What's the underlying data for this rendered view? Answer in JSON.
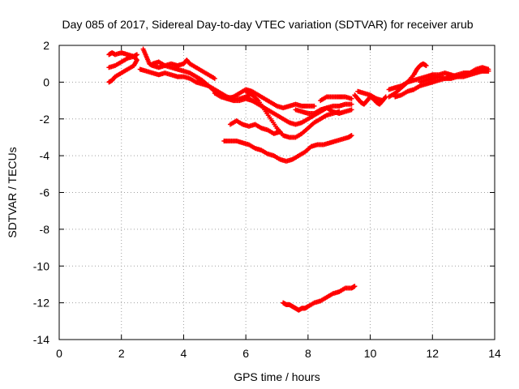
{
  "chart_data": {
    "type": "scatter",
    "title": "Day 085 of 2017, Sidereal Day-to-day VTEC variation (SDTVAR) for receiver arub",
    "xlabel": "GPS time / hours",
    "ylabel": "SDTVAR / TECUs",
    "xlim": [
      0,
      14
    ],
    "ylim": [
      -14,
      2
    ],
    "xticks": [
      "0",
      "2",
      "4",
      "6",
      "8",
      "10",
      "12",
      "14"
    ],
    "yticks": [
      "2",
      "0",
      "-2",
      "-4",
      "-6",
      "-8",
      "-10",
      "-12",
      "-14"
    ],
    "grid": true,
    "marker": "plus",
    "color": "#ff0000",
    "series": [
      {
        "x": [
          1.6,
          1.7,
          1.8,
          2.0,
          2.2,
          2.4,
          2.5,
          2.4,
          2.2,
          2.0,
          1.8,
          1.7,
          1.6
        ],
        "y": [
          1.5,
          1.6,
          1.5,
          1.6,
          1.5,
          1.4,
          1.2,
          0.9,
          0.7,
          0.5,
          0.3,
          0.1,
          0.0
        ]
      },
      {
        "x": [
          1.6,
          1.8,
          2.0,
          2.2,
          2.4,
          2.5
        ],
        "y": [
          0.8,
          0.9,
          1.1,
          1.3,
          1.4,
          1.5
        ]
      },
      {
        "x": [
          2.7,
          2.8,
          2.9,
          3.0,
          3.2,
          3.4,
          3.6,
          3.8,
          4.0,
          4.2,
          4.4,
          4.6,
          4.8,
          5.0,
          5.2,
          5.4,
          5.6,
          5.8,
          6.0,
          6.2
        ],
        "y": [
          1.8,
          1.4,
          1.0,
          0.9,
          0.8,
          0.9,
          0.8,
          0.7,
          0.6,
          0.5,
          0.3,
          0.1,
          -0.2,
          -0.5,
          -0.7,
          -0.9,
          -1.0,
          -1.0,
          -0.9,
          -1.0
        ]
      },
      {
        "x": [
          2.6,
          2.8,
          3.0,
          3.2,
          3.4,
          3.6,
          3.8,
          4.0,
          4.2,
          4.4,
          4.6,
          4.8
        ],
        "y": [
          0.7,
          0.6,
          0.5,
          0.4,
          0.5,
          0.4,
          0.3,
          0.3,
          0.2,
          0.0,
          -0.1,
          -0.2
        ]
      },
      {
        "x": [
          3.0,
          3.2,
          3.4,
          3.6,
          3.8,
          4.0,
          4.1,
          4.2,
          4.4,
          4.6,
          4.8,
          5.0
        ],
        "y": [
          1.0,
          1.1,
          0.9,
          1.0,
          0.9,
          1.0,
          1.2,
          1.0,
          0.8,
          0.6,
          0.4,
          0.2
        ]
      },
      {
        "x": [
          4.4,
          4.6,
          4.8,
          5.0,
          5.2,
          5.4,
          5.6,
          5.8,
          6.0,
          6.2
        ],
        "y": [
          0.3,
          0.0,
          -0.2,
          -0.4,
          -0.6,
          -0.8,
          -0.9,
          -0.9,
          -0.8,
          -0.6
        ]
      },
      {
        "x": [
          5.0,
          5.2,
          5.4,
          5.6,
          5.8,
          6.0,
          6.2,
          6.4,
          6.6,
          6.8,
          7.0,
          7.2,
          7.4,
          7.6,
          7.8,
          8.0,
          8.2
        ],
        "y": [
          -0.6,
          -0.8,
          -0.9,
          -0.8,
          -0.6,
          -0.4,
          -0.5,
          -0.7,
          -0.9,
          -1.1,
          -1.3,
          -1.4,
          -1.3,
          -1.2,
          -1.3,
          -1.3,
          -1.3
        ]
      },
      {
        "x": [
          6.0,
          6.2,
          6.4,
          6.6,
          6.8,
          7.0,
          7.2,
          7.4,
          7.6,
          7.8,
          8.0,
          8.2,
          8.4,
          8.6,
          8.8,
          9.0,
          9.2,
          9.4
        ],
        "y": [
          -0.8,
          -1.0,
          -1.2,
          -1.4,
          -1.6,
          -1.8,
          -2.0,
          -2.2,
          -2.3,
          -2.2,
          -2.0,
          -1.8,
          -1.6,
          -1.4,
          -1.3,
          -1.3,
          -1.2,
          -1.2
        ]
      },
      {
        "x": [
          6.0,
          6.2,
          6.4,
          6.6,
          6.8,
          7.0,
          7.2,
          7.4,
          7.6,
          7.8,
          8.0,
          8.2,
          8.4,
          8.6,
          8.8,
          9.0
        ],
        "y": [
          -0.5,
          -0.7,
          -1.0,
          -1.5,
          -2.0,
          -2.5,
          -2.9,
          -3.0,
          -3.0,
          -2.8,
          -2.5,
          -2.2,
          -2.0,
          -1.8,
          -1.7,
          -1.6
        ]
      },
      {
        "x": [
          7.6,
          7.8,
          8.0,
          8.2,
          8.4,
          8.6,
          8.8,
          9.0,
          9.2,
          9.4
        ],
        "y": [
          -1.5,
          -1.6,
          -1.7,
          -1.7,
          -1.5,
          -1.4,
          -1.6,
          -1.7,
          -1.6,
          -1.5
        ]
      },
      {
        "x": [
          8.4,
          8.6,
          8.8,
          9.0,
          9.2,
          9.4
        ],
        "y": [
          -1.0,
          -0.8,
          -0.8,
          -0.8,
          -0.8,
          -0.9
        ]
      },
      {
        "x": [
          5.5,
          5.7,
          5.9,
          6.1,
          6.3,
          6.5,
          6.7,
          6.9,
          7.1
        ],
        "y": [
          -2.3,
          -2.1,
          -2.3,
          -2.4,
          -2.3,
          -2.5,
          -2.6,
          -2.8,
          -2.7
        ]
      },
      {
        "x": [
          5.3,
          5.5,
          5.7,
          5.9,
          6.1,
          6.3,
          6.5,
          6.7,
          6.9,
          7.1,
          7.3,
          7.5,
          7.7,
          7.9,
          8.1,
          8.3,
          8.5,
          8.7,
          8.9,
          9.1,
          9.3,
          9.4
        ],
        "y": [
          -3.2,
          -3.2,
          -3.2,
          -3.3,
          -3.4,
          -3.6,
          -3.7,
          -3.9,
          -4.0,
          -4.2,
          -4.3,
          -4.2,
          -4.0,
          -3.8,
          -3.5,
          -3.4,
          -3.4,
          -3.3,
          -3.2,
          -3.1,
          -3.0,
          -2.9
        ]
      },
      {
        "x": [
          9.5,
          9.6,
          9.7,
          9.8,
          9.9,
          10.0,
          10.1,
          10.2,
          10.3,
          10.4,
          10.5
        ],
        "y": [
          -0.7,
          -0.9,
          -1.1,
          -1.2,
          -1.0,
          -0.8,
          -0.9,
          -1.1,
          -1.2,
          -1.0,
          -0.8
        ]
      },
      {
        "x": [
          9.6,
          9.8,
          10.0,
          10.2,
          10.4
        ],
        "y": [
          -0.5,
          -0.6,
          -0.7,
          -0.9,
          -1.0
        ]
      },
      {
        "x": [
          10.6,
          10.8,
          11.0,
          11.2,
          11.4,
          11.5,
          11.6,
          11.7,
          11.8
        ],
        "y": [
          -0.8,
          -0.6,
          -0.3,
          0.0,
          0.4,
          0.7,
          0.9,
          1.0,
          0.9
        ]
      },
      {
        "x": [
          10.6,
          10.8,
          11.0,
          11.2,
          11.4,
          11.6,
          11.8,
          12.0,
          12.2,
          12.4,
          12.6,
          12.8,
          13.0,
          13.2,
          13.4,
          13.6,
          13.8
        ],
        "y": [
          -0.4,
          -0.3,
          -0.2,
          0.0,
          0.1,
          0.2,
          0.3,
          0.4,
          0.4,
          0.5,
          0.4,
          0.3,
          0.4,
          0.5,
          0.7,
          0.8,
          0.7
        ]
      },
      {
        "x": [
          10.8,
          11.0,
          11.2,
          11.4,
          11.6,
          11.8,
          12.0,
          12.2,
          12.4,
          12.6,
          12.8,
          13.0,
          13.2,
          13.4,
          13.6,
          13.8
        ],
        "y": [
          -0.8,
          -0.7,
          -0.5,
          -0.4,
          -0.2,
          -0.1,
          0.0,
          0.1,
          0.2,
          0.3,
          0.4,
          0.5,
          0.5,
          0.6,
          0.6,
          0.6
        ]
      },
      {
        "x": [
          11.6,
          11.8,
          12.0,
          12.2,
          12.4,
          12.6,
          12.8,
          13.0,
          13.2,
          13.4,
          13.6,
          13.8
        ],
        "y": [
          0.0,
          0.1,
          0.2,
          0.3,
          0.2,
          0.2,
          0.3,
          0.3,
          0.4,
          0.5,
          0.6,
          0.6
        ]
      },
      {
        "x": [
          7.2,
          7.3,
          7.4,
          7.5,
          7.6,
          7.7,
          7.8,
          7.9,
          8.0,
          8.2,
          8.4,
          8.6,
          8.8,
          9.0,
          9.2,
          9.4,
          9.5
        ],
        "y": [
          -12.0,
          -12.1,
          -12.1,
          -12.2,
          -12.3,
          -12.4,
          -12.3,
          -12.3,
          -12.2,
          -12.0,
          -11.9,
          -11.7,
          -11.5,
          -11.4,
          -11.2,
          -11.2,
          -11.1
        ]
      }
    ]
  }
}
